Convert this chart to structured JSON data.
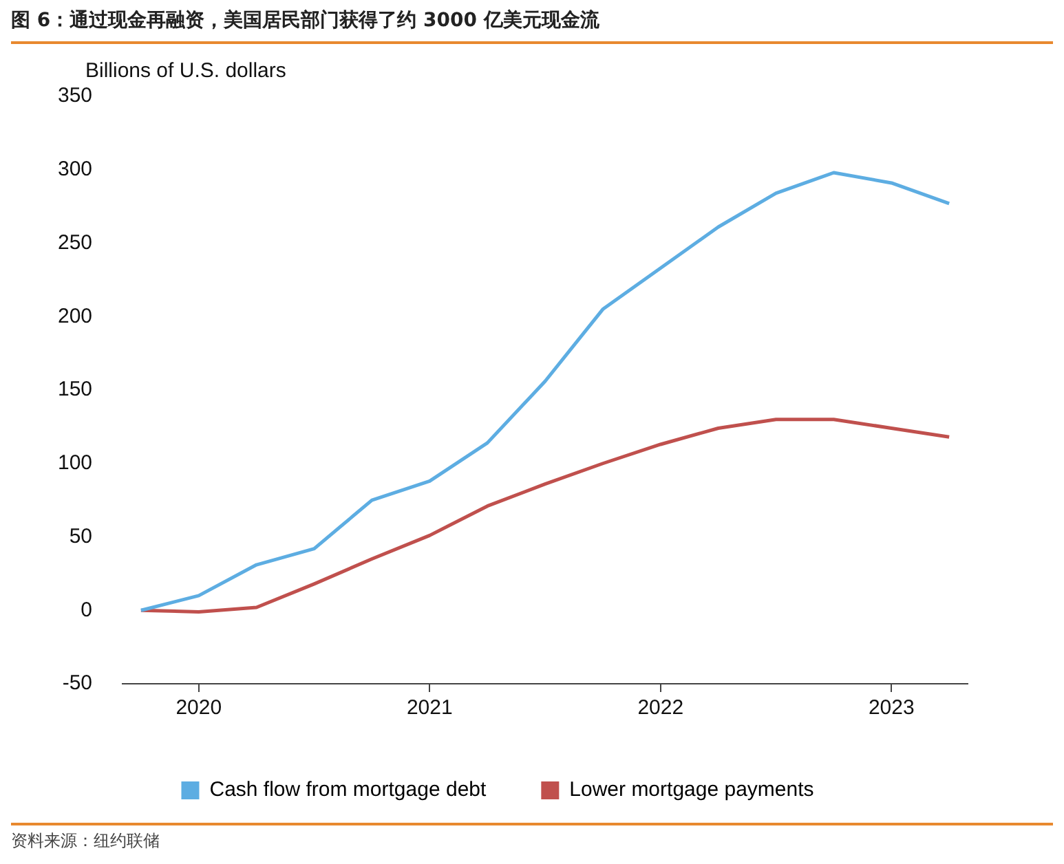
{
  "chart_data": {
    "type": "line",
    "title": "图 6：通过现金再融资，美国居民部门获得了约 3000 亿美元现金流",
    "ylabel": "Billions of U.S. dollars",
    "x": [
      2019.75,
      2020,
      2020.25,
      2020.5,
      2020.75,
      2021,
      2021.25,
      2021.5,
      2021.75,
      2022,
      2022.25,
      2022.5,
      2022.75,
      2023,
      2023.25
    ],
    "series": [
      {
        "name": "Cash flow from mortgage debt",
        "color": "#5dade2",
        "values": [
          0,
          10,
          31,
          42,
          75,
          88,
          114,
          156,
          205,
          233,
          261,
          284,
          298,
          291,
          277
        ]
      },
      {
        "name": "Lower mortgage payments",
        "color": "#c0504d",
        "values": [
          0,
          -1,
          2,
          18,
          35,
          51,
          71,
          86,
          100,
          113,
          124,
          130,
          130,
          124,
          118
        ]
      }
    ],
    "xlim": [
      2019.67,
      2023.33
    ],
    "xticks": [
      2020,
      2021,
      2022,
      2023
    ],
    "ylim": [
      -50,
      350
    ],
    "yticks": [
      -50,
      0,
      50,
      100,
      150,
      200,
      250,
      300,
      350
    ],
    "grid": false,
    "legend": "bottom",
    "marker": "none",
    "line_style": "solid",
    "annotations": [
      "资料来源：纽约联储"
    ]
  }
}
